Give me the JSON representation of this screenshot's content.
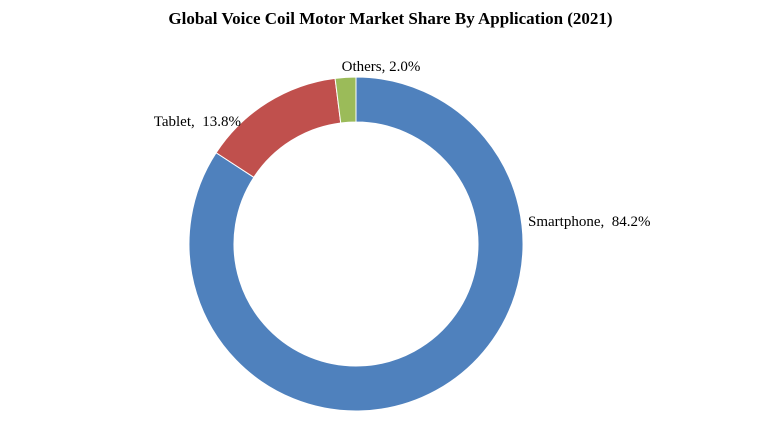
{
  "chart_data": {
    "type": "pie",
    "title": "Global Voice Coil Motor Market Share By Application (2021)",
    "donut": true,
    "legend": "none",
    "categories": [
      "Smartphone",
      "Tablet",
      "Others"
    ],
    "values": [
      84.2,
      13.8,
      2.0
    ],
    "unit": "%",
    "colors": [
      "#4f81bd",
      "#c0504d",
      "#9bbb59"
    ],
    "data_labels": [
      "Smartphone,  84.2%",
      "Tablet,  13.8%",
      "Others, 2.0%"
    ]
  }
}
